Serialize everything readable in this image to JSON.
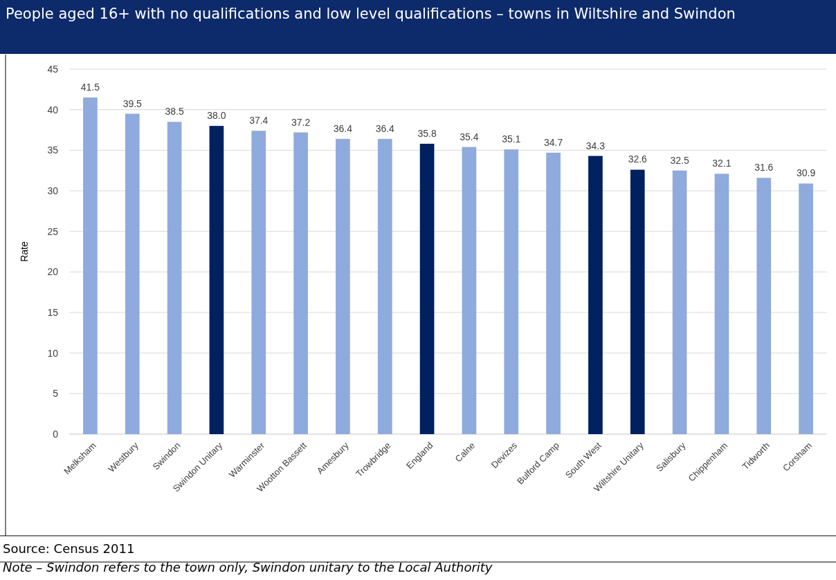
{
  "chart_data": {
    "type": "bar",
    "title": "People aged 16+ with no qualifications and low level qualifications – towns in Wiltshire and Swindon",
    "ylabel": "Rate",
    "categories": [
      "Melksham",
      "Westbury",
      "Swindon",
      "Swindon Unitary",
      "Warminster",
      "Wootton Bassett",
      "Amesbury",
      "Trowbridge",
      "England",
      "Calne",
      "Devizes",
      "Bulford Camp",
      "South West",
      "Wiltshire Unitary",
      "Salisbury",
      "Chippenham",
      "Tidworth",
      "Corsham"
    ],
    "values": [
      41.5,
      39.5,
      38.5,
      38.0,
      37.4,
      37.2,
      36.4,
      36.4,
      35.8,
      35.4,
      35.1,
      34.7,
      34.3,
      32.6,
      32.5,
      32.1,
      31.6,
      30.9
    ],
    "value_labels": [
      "41.5",
      "39.5",
      "38.5",
      "38.0",
      "37.4",
      "37.2",
      "36.4",
      "36.4",
      "35.8",
      "35.4",
      "35.1",
      "34.7",
      "34.3",
      "32.6",
      "32.5",
      "32.1",
      "31.6",
      "30.9"
    ],
    "colors": [
      "#8faadc",
      "#8faadc",
      "#8faadc",
      "#002060",
      "#8faadc",
      "#8faadc",
      "#8faadc",
      "#8faadc",
      "#002060",
      "#8faadc",
      "#8faadc",
      "#8faadc",
      "#002060",
      "#002060",
      "#8faadc",
      "#8faadc",
      "#8faadc",
      "#8faadc"
    ],
    "ylim": [
      0,
      45
    ],
    "yticks": [
      0,
      5,
      10,
      15,
      20,
      25,
      30,
      35,
      40,
      45
    ],
    "grid": "y",
    "annotations": [
      "Source: Census 2011",
      "Note – Swindon refers to the town only, Swindon unitary to the Local Authority"
    ]
  }
}
